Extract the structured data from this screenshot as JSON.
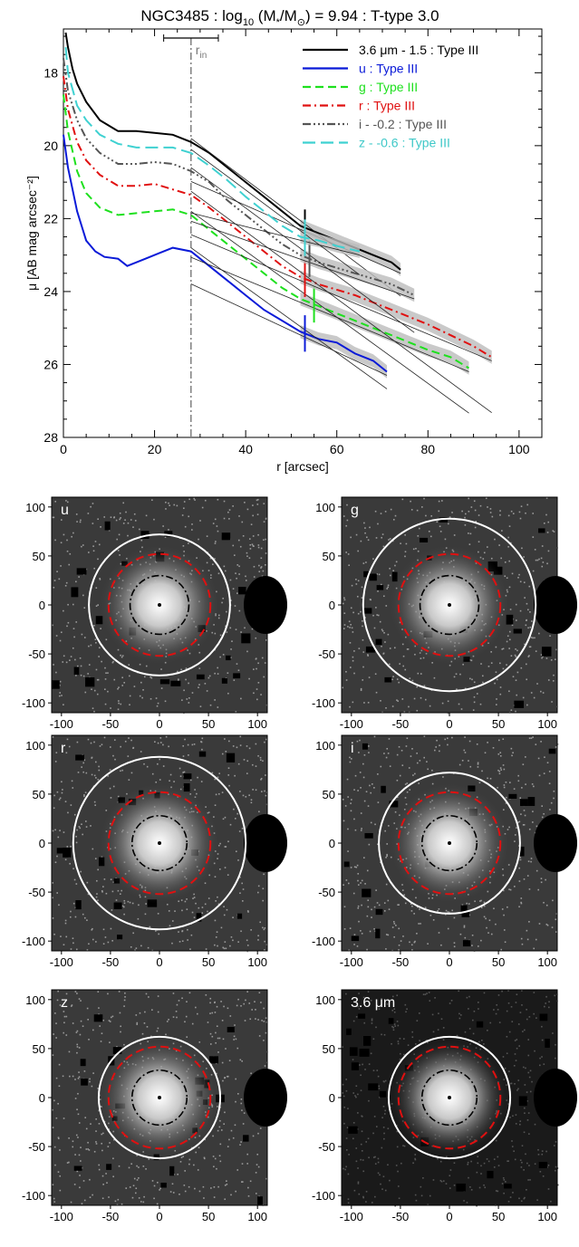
{
  "chart_data": [
    {
      "type": "line",
      "title_parts": {
        "prefix": "NGC3485 : log",
        "sub": "10",
        "mid": " (M",
        "sub2": "*",
        "mid2": "/M",
        "sun": "⊙",
        "suffix": ") = 9.94 : T-type 3.0"
      },
      "xlabel": "r [arcsec]",
      "ylabel": "μ [AB mag arcsec⁻²]",
      "xlim": [
        0,
        105
      ],
      "ylim": [
        28,
        16.8
      ],
      "xticks": [
        0,
        20,
        40,
        60,
        80,
        100
      ],
      "yticks": [
        18,
        20,
        22,
        24,
        26,
        28
      ],
      "r_in": 28,
      "r_in_label": "rin",
      "r_in_range": [
        22,
        34
      ],
      "legend_position": "top-right",
      "series": [
        {
          "name": "3.6 μm - 1.5 : Type III",
          "color": "#000000",
          "dash": "",
          "x": [
            0.5,
            1,
            2,
            3,
            5,
            8,
            12,
            16,
            20,
            24,
            28,
            32,
            36,
            40,
            44,
            48,
            52,
            56,
            60,
            64,
            68,
            72,
            74
          ],
          "y": [
            16.9,
            17.3,
            17.9,
            18.3,
            18.8,
            19.3,
            19.6,
            19.6,
            19.65,
            19.7,
            19.9,
            20.2,
            20.6,
            21.0,
            21.4,
            21.8,
            22.2,
            22.4,
            22.6,
            22.8,
            23.0,
            23.2,
            23.4
          ],
          "break": 53
        },
        {
          "name": "u : Type III",
          "color": "#0a1ad8",
          "dash": "",
          "x": [
            0,
            1,
            3,
            5,
            7,
            9,
            12,
            14,
            16,
            18,
            21,
            24,
            28,
            32,
            36,
            40,
            44,
            48,
            52,
            56,
            60,
            64,
            68,
            71
          ],
          "y": [
            19.7,
            20.6,
            21.8,
            22.6,
            22.9,
            23.05,
            23.1,
            23.3,
            23.2,
            23.1,
            22.95,
            22.8,
            22.9,
            23.3,
            23.7,
            24.1,
            24.5,
            24.8,
            25.1,
            25.3,
            25.4,
            25.7,
            25.9,
            26.2
          ],
          "break": 53
        },
        {
          "name": "g : Type III",
          "color": "#1ee01e",
          "dash": "9 5",
          "x": [
            0,
            1,
            3,
            5,
            8,
            12,
            16,
            20,
            24,
            28,
            32,
            36,
            40,
            44,
            48,
            52,
            56,
            60,
            64,
            68,
            72,
            76,
            80,
            85,
            89
          ],
          "y": [
            18.6,
            19.6,
            20.7,
            21.3,
            21.7,
            21.9,
            21.85,
            21.8,
            21.75,
            21.9,
            22.3,
            22.7,
            23.1,
            23.5,
            23.9,
            24.2,
            24.4,
            24.6,
            24.8,
            25.0,
            25.2,
            25.4,
            25.6,
            25.8,
            26.1
          ],
          "break": 55
        },
        {
          "name": "r : Type III",
          "color": "#e01010",
          "dash": "9 4 2 4",
          "x": [
            0,
            1,
            3,
            5,
            8,
            12,
            16,
            20,
            24,
            28,
            32,
            36,
            40,
            44,
            48,
            52,
            56,
            60,
            64,
            68,
            72,
            76,
            80,
            85,
            90,
            94
          ],
          "y": [
            18.1,
            19.0,
            19.9,
            20.4,
            20.8,
            21.1,
            21.1,
            21.05,
            21.2,
            21.35,
            21.7,
            22.1,
            22.5,
            22.9,
            23.3,
            23.6,
            23.8,
            23.95,
            24.1,
            24.3,
            24.5,
            24.7,
            24.9,
            25.2,
            25.5,
            25.8
          ],
          "break": 53
        },
        {
          "name": "i - -0.2 : Type III",
          "color": "#555555",
          "dash": "9 3 2 3 2 3 2 3",
          "x": [
            0,
            1,
            3,
            5,
            8,
            12,
            16,
            20,
            24,
            28,
            32,
            36,
            40,
            44,
            48,
            52,
            56,
            60,
            64,
            68,
            72,
            77
          ],
          "y": [
            17.6,
            18.5,
            19.3,
            19.8,
            20.2,
            20.5,
            20.5,
            20.45,
            20.5,
            20.7,
            21.0,
            21.5,
            21.9,
            22.3,
            22.7,
            23.0,
            23.2,
            23.35,
            23.5,
            23.65,
            23.8,
            24.1
          ],
          "break": 54
        },
        {
          "name": "z - -0.6 : Type III",
          "color": "#3fd1d1",
          "dash": "14 6",
          "x": [
            0.5,
            1,
            3,
            5,
            8,
            12,
            16,
            20,
            24,
            28,
            32,
            36,
            40,
            44,
            48,
            52,
            56,
            60,
            65
          ],
          "y": [
            17.3,
            18.0,
            18.9,
            19.3,
            19.7,
            19.95,
            20.05,
            20.05,
            20.05,
            20.2,
            20.55,
            20.95,
            21.4,
            21.8,
            22.2,
            22.5,
            22.6,
            22.75,
            22.9
          ],
          "break": 53
        }
      ]
    },
    {
      "type": "image-grid",
      "axis_ticks_x": [
        -100,
        -50,
        0,
        50,
        100
      ],
      "axis_ticks_y": [
        100,
        50,
        0,
        -50,
        -100
      ],
      "panels": [
        {
          "label": "u",
          "outer_r": 72,
          "mid_r": 52,
          "inner_r": 30,
          "mask_side": "right"
        },
        {
          "label": "g",
          "outer_r": 88,
          "mid_r": 52,
          "inner_r": 30,
          "mask_side": "right"
        },
        {
          "label": "r",
          "outer_r": 88,
          "mid_r": 52,
          "inner_r": 28,
          "mask_side": "right"
        },
        {
          "label": "i",
          "outer_r": 72,
          "mid_r": 52,
          "inner_r": 28,
          "mask_side": "right"
        },
        {
          "label": "z",
          "outer_r": 62,
          "mid_r": 52,
          "inner_r": 28,
          "mask_side": "right"
        },
        {
          "label": "3.6 μm",
          "outer_r": 62,
          "mid_r": 52,
          "inner_r": 28,
          "mask_side": "right"
        }
      ]
    }
  ]
}
